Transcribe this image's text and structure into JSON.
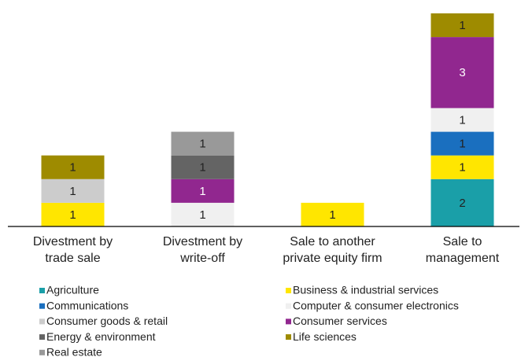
{
  "chart_data": {
    "type": "stacked-bar",
    "categories": [
      "Divestment by trade sale",
      "Divestment by write-off",
      "Sale to another private equity firm",
      "Sale to management"
    ],
    "ylim": [
      0,
      9
    ],
    "series": [
      {
        "name": "Agriculture",
        "color": "#1a9fa8",
        "values": [
          null,
          null,
          null,
          2
        ]
      },
      {
        "name": "Business & industrial services",
        "color": "#ffe600",
        "values": [
          1,
          null,
          1,
          1
        ]
      },
      {
        "name": "Communications",
        "color": "#1a6fbf",
        "values": [
          null,
          null,
          null,
          1
        ]
      },
      {
        "name": "Computer & consumer electronics",
        "color": "#f0f0f0",
        "values": [
          null,
          1,
          null,
          1
        ]
      },
      {
        "name": "Consumer goods & retail",
        "color": "#cccccc",
        "values": [
          1,
          null,
          null,
          null
        ]
      },
      {
        "name": "Consumer services",
        "color": "#91278f",
        "values": [
          null,
          1,
          null,
          3
        ]
      },
      {
        "name": "Energy & environment",
        "color": "#646464",
        "values": [
          null,
          1,
          null,
          null
        ]
      },
      {
        "name": "Life sciences",
        "color": "#9e8b00",
        "values": [
          1,
          null,
          null,
          1
        ]
      },
      {
        "name": "Real estate",
        "color": "#999999",
        "values": [
          null,
          1,
          null,
          null
        ]
      }
    ]
  }
}
